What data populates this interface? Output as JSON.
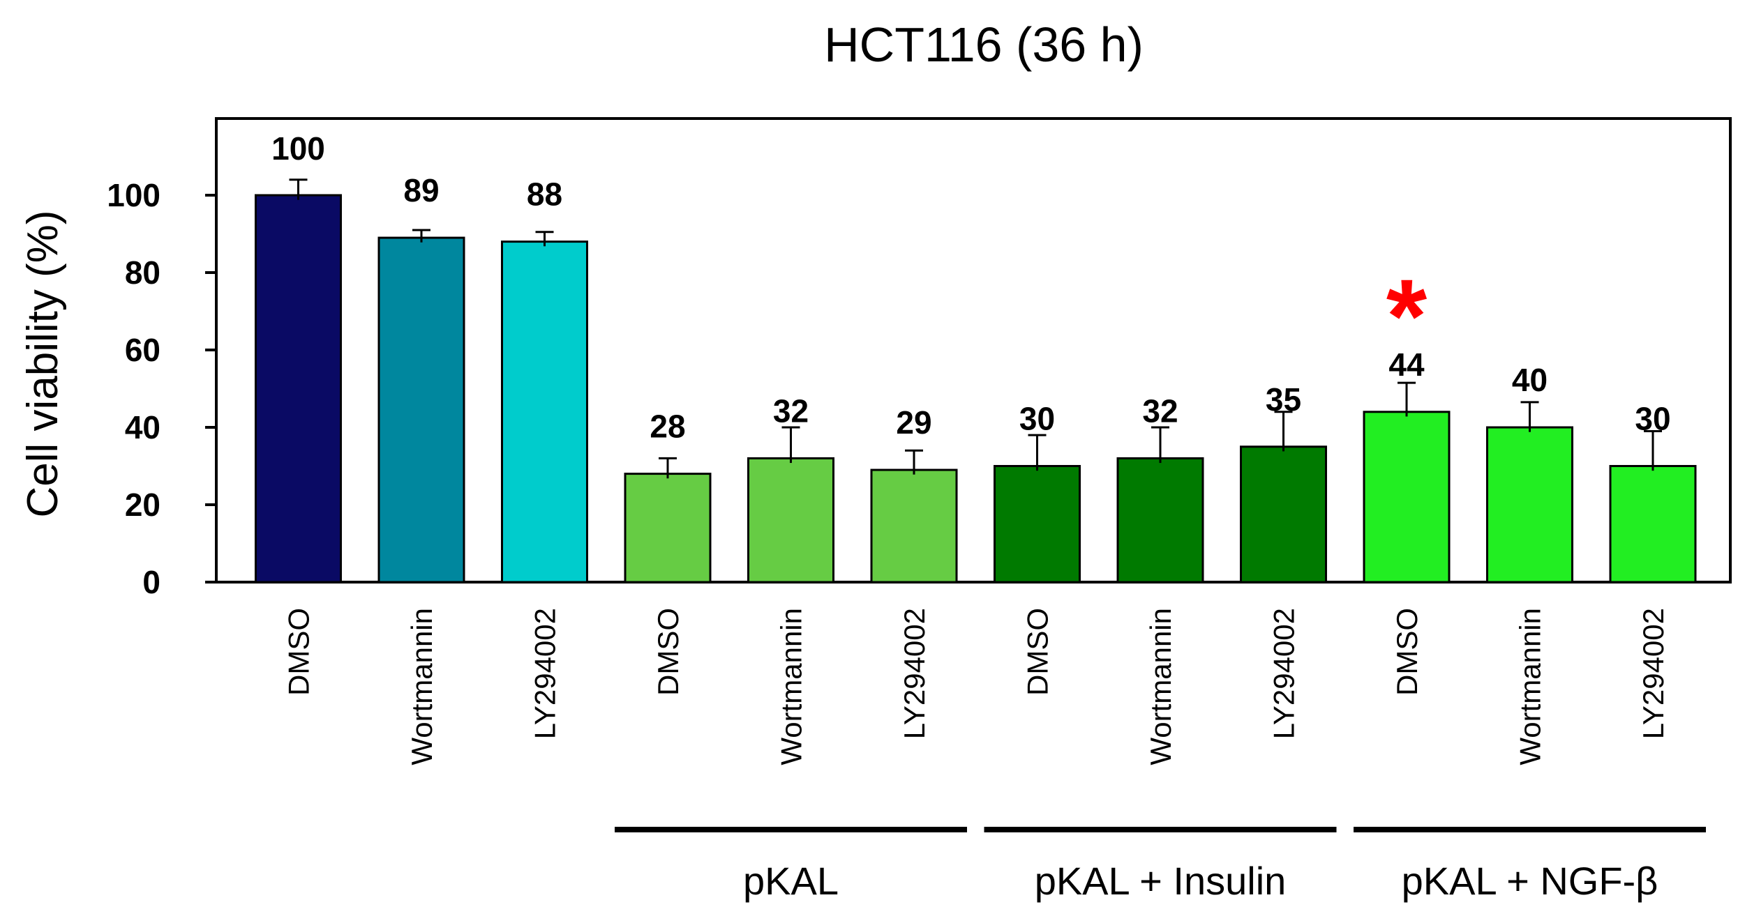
{
  "chart_data": {
    "type": "bar",
    "title": "HCT116 (36 h)",
    "xlabel": "",
    "ylabel": "Cell viability (%)",
    "ylim": [
      0,
      115
    ],
    "yticks": [
      "0",
      "20",
      "40",
      "60",
      "80",
      "100"
    ],
    "grid": false,
    "categories": [
      "DMSO",
      "Wortmannin",
      "LY294002",
      "DMSO",
      "Wortmannin",
      "LY294002",
      "DMSO",
      "Wortmannin",
      "LY294002",
      "DMSO",
      "Wortmannin",
      "LY294002"
    ],
    "values": [
      100,
      89,
      88,
      28,
      32,
      29,
      30,
      32,
      35,
      44,
      40,
      30
    ],
    "value_labels": [
      "100",
      "89",
      "88",
      "28",
      "32",
      "29",
      "30",
      "32",
      "35",
      "44",
      "40",
      "30"
    ],
    "errors": [
      4,
      2,
      2.5,
      4,
      8,
      5,
      8,
      8,
      9,
      7.5,
      6.5,
      9
    ],
    "bar_colors": [
      "#0a0a64",
      "#00879e",
      "#00cccc",
      "#66cc44",
      "#66cc44",
      "#66cc44",
      "#007a00",
      "#007a00",
      "#007a00",
      "#22ee22",
      "#22ee22",
      "#22ee22"
    ],
    "groups": [
      {
        "label": "pKAL",
        "start": 3,
        "end": 5
      },
      {
        "label": "pKAL + Insulin",
        "start": 6,
        "end": 8
      },
      {
        "label": "pKAL + NGF-β",
        "start": 9,
        "end": 11
      }
    ],
    "significance": {
      "index": 9,
      "symbol": "*",
      "color": "#ff0000"
    }
  }
}
